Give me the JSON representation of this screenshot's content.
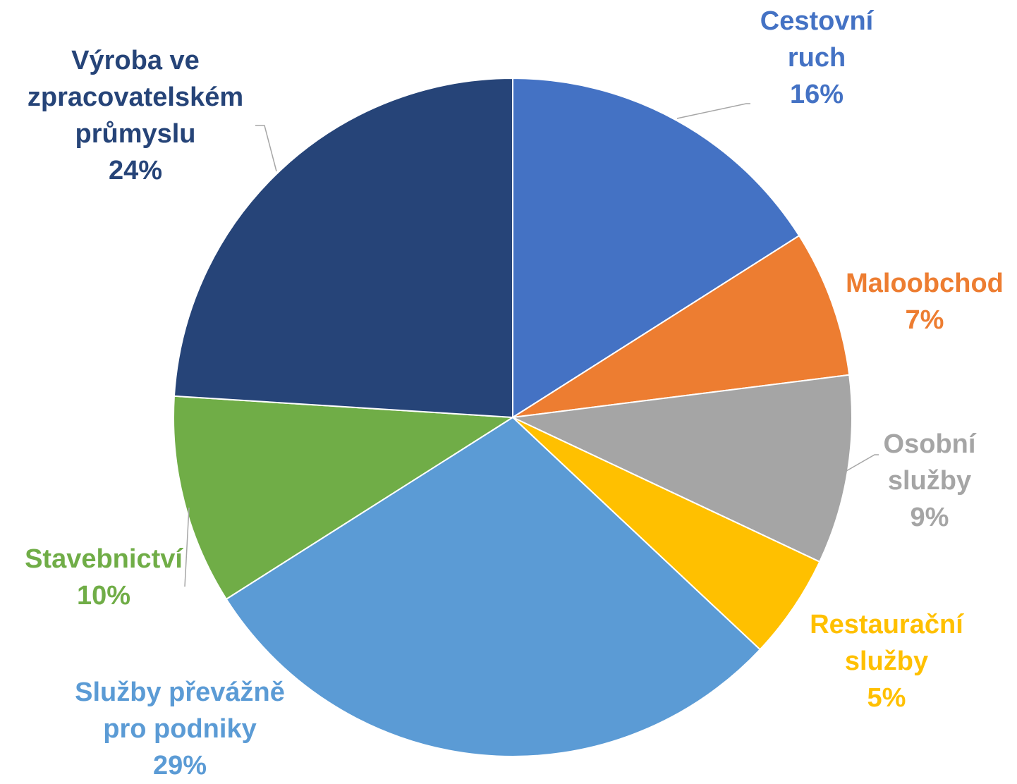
{
  "chart_data": {
    "type": "pie",
    "categories": [
      "Cestovní\nruch",
      "Maloobchod",
      "Osobní\nslužby",
      "Restaurační\nslužby",
      "Služby převážně\npro podniky",
      "Stavebnictví",
      "Výroba ve\nzpracovatelském\nprůmyslu"
    ],
    "values": [
      16,
      7,
      9,
      5,
      29,
      10,
      24
    ],
    "value_labels": [
      "16%",
      "7%",
      "9%",
      "5%",
      "29%",
      "10%",
      "24%"
    ],
    "colors": [
      "#4472c4",
      "#ed7d31",
      "#a5a5a5",
      "#ffc000",
      "#5b9bd5",
      "#70ad47",
      "#264478"
    ]
  }
}
